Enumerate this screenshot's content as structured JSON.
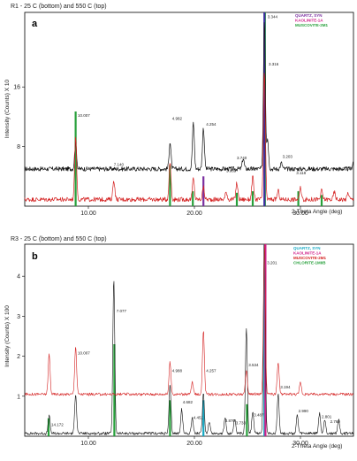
{
  "chart_data": [
    {
      "type": "line",
      "panel_label": "a",
      "title": "R1 - 25 C (bottom) and 550 C (top)",
      "xlabel": "2-Theta Angle (deg)",
      "ylabel": "Intensity (Counts) X 10",
      "xlim": [
        4,
        35
      ],
      "ylim": [
        0,
        26
      ],
      "x_ticks": [
        10,
        20,
        30
      ],
      "x_tick_labels": [
        "10.00",
        "20.00",
        "30.00"
      ],
      "y_ticks": [
        8,
        16
      ],
      "y_tick_labels": [
        "8",
        "16"
      ],
      "legend_position": "top-right",
      "legend": [
        {
          "label": "QUARTZ, SYN",
          "color": "#7a2fa0"
        },
        {
          "label": "KAOLINITE-1A",
          "color": "#d0208a"
        },
        {
          "label": "MUSCOVITE-2M1",
          "color": "#27a03b"
        }
      ],
      "series": [
        {
          "color": "#111111",
          "baseline": 5.0,
          "peaks": [
            [
              8.8,
              3.5
            ],
            [
              17.7,
              3.6
            ],
            [
              19.9,
              6.2
            ],
            [
              20.85,
              5.5
            ],
            [
              24.6,
              1.4
            ],
            [
              26.6,
              20.0
            ],
            [
              26.9,
              4.0
            ],
            [
              28.2,
              0.8
            ],
            [
              35.0,
              1.0
            ]
          ]
        },
        {
          "color": "#d42020",
          "baseline": 0.9,
          "peaks": [
            [
              8.8,
              8.5
            ],
            [
              12.4,
              2.6
            ],
            [
              17.7,
              5.0
            ],
            [
              19.9,
              2.8
            ],
            [
              20.85,
              1.6
            ],
            [
              23.0,
              1.0
            ],
            [
              24.0,
              2.2
            ],
            [
              25.5,
              3.0
            ],
            [
              26.6,
              17.0
            ],
            [
              27.9,
              1.2
            ],
            [
              30.0,
              1.5
            ],
            [
              32.0,
              1.2
            ],
            [
              33.2,
              1.0
            ],
            [
              34.5,
              0.9
            ]
          ]
        }
      ],
      "reference_lines": [
        {
          "x": 8.8,
          "h": 12.7,
          "color": "#27a03b"
        },
        {
          "x": 17.7,
          "h": 5.5,
          "color": "#27a03b"
        },
        {
          "x": 19.85,
          "h": 2.0,
          "color": "#27a03b"
        },
        {
          "x": 20.85,
          "h": 4.0,
          "color": "#7a2fa0"
        },
        {
          "x": 24.0,
          "h": 1.8,
          "color": "#27a03b"
        },
        {
          "x": 25.5,
          "h": 2.0,
          "color": "#27a03b"
        },
        {
          "x": 26.65,
          "h": 26.0,
          "color": "#27a03b"
        },
        {
          "x": 26.6,
          "h": 26.0,
          "color": "#3a2d9c"
        },
        {
          "x": 29.8,
          "h": 2.0,
          "color": "#27a03b"
        },
        {
          "x": 32.0,
          "h": 1.5,
          "color": "#27a03b"
        }
      ],
      "peak_labels": [
        {
          "x": 9.0,
          "y": 12.0,
          "text": "10.007"
        },
        {
          "x": 17.9,
          "y": 11.6,
          "text": "4.982"
        },
        {
          "x": 21.1,
          "y": 10.8,
          "text": "4.254"
        },
        {
          "x": 12.4,
          "y": 5.4,
          "text": "7.140"
        },
        {
          "x": 26.9,
          "y": 25.2,
          "text": "3.344"
        },
        {
          "x": 27.0,
          "y": 18.9,
          "text": "3.316"
        },
        {
          "x": 28.3,
          "y": 6.5,
          "text": "3.203"
        },
        {
          "x": 23.0,
          "y": 4.6,
          "text": "3.869"
        },
        {
          "x": 24.0,
          "y": 6.3,
          "text": "3.740"
        },
        {
          "x": 25.0,
          "y": 4.8,
          "text": "3.507"
        },
        {
          "x": 29.6,
          "y": 4.3,
          "text": "3.118"
        },
        {
          "x": 33.6,
          "y": 4.8,
          "text": "2.993"
        }
      ]
    },
    {
      "type": "line",
      "panel_label": "b",
      "title": "R3 - 25 C (bottom) and 550 C (top)",
      "xlabel": "2-Theta Angle (deg)",
      "ylabel": "Intensity (Counts) X 100",
      "xlim": [
        4,
        35
      ],
      "ylim": [
        0,
        4.8
      ],
      "x_ticks": [
        10,
        20,
        30
      ],
      "x_tick_labels": [
        "10.00",
        "20.00",
        "30.00"
      ],
      "y_ticks": [
        1,
        2,
        3,
        4
      ],
      "y_tick_labels": [
        "1",
        "2",
        "3",
        "4"
      ],
      "legend_position": "top-right",
      "legend": [
        {
          "label": "QUARTZ, SYN",
          "color": "#17a9c4"
        },
        {
          "label": "KAOLINITE-1A",
          "color": "#d0208a"
        },
        {
          "label": "MUSCOVITE-2M1",
          "color": "#d42020"
        },
        {
          "label": "CHLORITE-1MIIB",
          "color": "#27a03b"
        }
      ],
      "series": [
        {
          "color": "#111111",
          "baseline": 0.07,
          "peaks": [
            [
              6.3,
              0.45
            ],
            [
              8.8,
              1.0
            ],
            [
              12.4,
              3.85
            ],
            [
              17.7,
              1.2
            ],
            [
              18.8,
              0.6
            ],
            [
              19.8,
              0.4
            ],
            [
              20.85,
              1.0
            ],
            [
              21.4,
              0.3
            ],
            [
              22.9,
              0.4
            ],
            [
              23.8,
              0.35
            ],
            [
              24.9,
              2.65
            ],
            [
              25.5,
              0.55
            ],
            [
              26.6,
              4.75
            ],
            [
              27.9,
              1.0
            ],
            [
              29.7,
              0.45
            ],
            [
              31.8,
              0.5
            ],
            [
              32.3,
              0.35
            ],
            [
              33.6,
              0.35
            ]
          ]
        },
        {
          "color": "#d42020",
          "baseline": 1.05,
          "peaks": [
            [
              6.3,
              1.0
            ],
            [
              8.8,
              1.2
            ],
            [
              17.7,
              0.8
            ],
            [
              19.8,
              0.3
            ],
            [
              20.85,
              1.6
            ],
            [
              24.9,
              0.6
            ],
            [
              26.6,
              3.8
            ],
            [
              27.9,
              0.8
            ],
            [
              30.0,
              0.3
            ]
          ]
        }
      ],
      "reference_lines": [
        {
          "x": 6.25,
          "h": 0.45,
          "color": "#27a03b"
        },
        {
          "x": 12.45,
          "h": 2.3,
          "color": "#27a03b"
        },
        {
          "x": 17.7,
          "h": 0.9,
          "color": "#27a03b"
        },
        {
          "x": 20.85,
          "h": 0.9,
          "color": "#17a9c4"
        },
        {
          "x": 24.95,
          "h": 0.8,
          "color": "#27a03b"
        },
        {
          "x": 26.6,
          "h": 4.8,
          "color": "#17a9c4"
        },
        {
          "x": 26.7,
          "h": 4.8,
          "color": "#d0208a"
        }
      ],
      "peak_labels": [
        {
          "x": 6.5,
          "y": 0.25,
          "text": "14.172"
        },
        {
          "x": 9.0,
          "y": 2.05,
          "text": "10.007"
        },
        {
          "x": 12.65,
          "y": 3.1,
          "text": "7.077"
        },
        {
          "x": 17.9,
          "y": 1.6,
          "text": "4.988"
        },
        {
          "x": 18.9,
          "y": 0.82,
          "text": "4.682"
        },
        {
          "x": 19.9,
          "y": 0.43,
          "text": "4.451"
        },
        {
          "x": 21.1,
          "y": 1.6,
          "text": "4.257"
        },
        {
          "x": 22.9,
          "y": 0.35,
          "text": "3.870"
        },
        {
          "x": 23.9,
          "y": 0.3,
          "text": "3.733"
        },
        {
          "x": 25.1,
          "y": 1.75,
          "text": "3.534"
        },
        {
          "x": 25.6,
          "y": 0.5,
          "text": "3.487"
        },
        {
          "x": 26.85,
          "y": 4.3,
          "text": "3.201"
        },
        {
          "x": 28.1,
          "y": 1.2,
          "text": "3.194"
        },
        {
          "x": 29.8,
          "y": 0.6,
          "text": "2.990"
        },
        {
          "x": 32.0,
          "y": 0.45,
          "text": "2.801"
        },
        {
          "x": 32.8,
          "y": 0.33,
          "text": "2.769"
        }
      ]
    }
  ]
}
